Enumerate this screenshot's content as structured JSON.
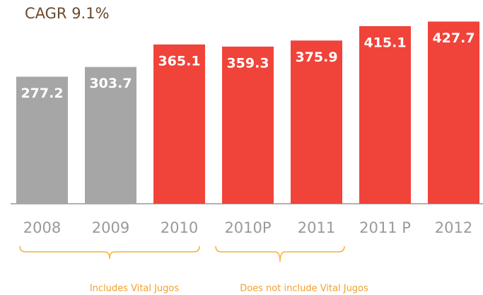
{
  "chart_data": {
    "type": "bar",
    "title": "CAGR 9.1%",
    "categories": [
      "2008",
      "2009",
      "2010",
      "2010P",
      "2011",
      "2011 P",
      "2012"
    ],
    "values": [
      277.2,
      303.7,
      365.1,
      359.3,
      375.9,
      415.1,
      427.7
    ],
    "colors": [
      "#a6a6a6",
      "#a6a6a6",
      "#f0433a",
      "#f0433a",
      "#f0433a",
      "#f0433a",
      "#f0433a"
    ],
    "annotations": [
      "Includes Vital Jugos",
      "Does not include Vital Jugos"
    ]
  }
}
